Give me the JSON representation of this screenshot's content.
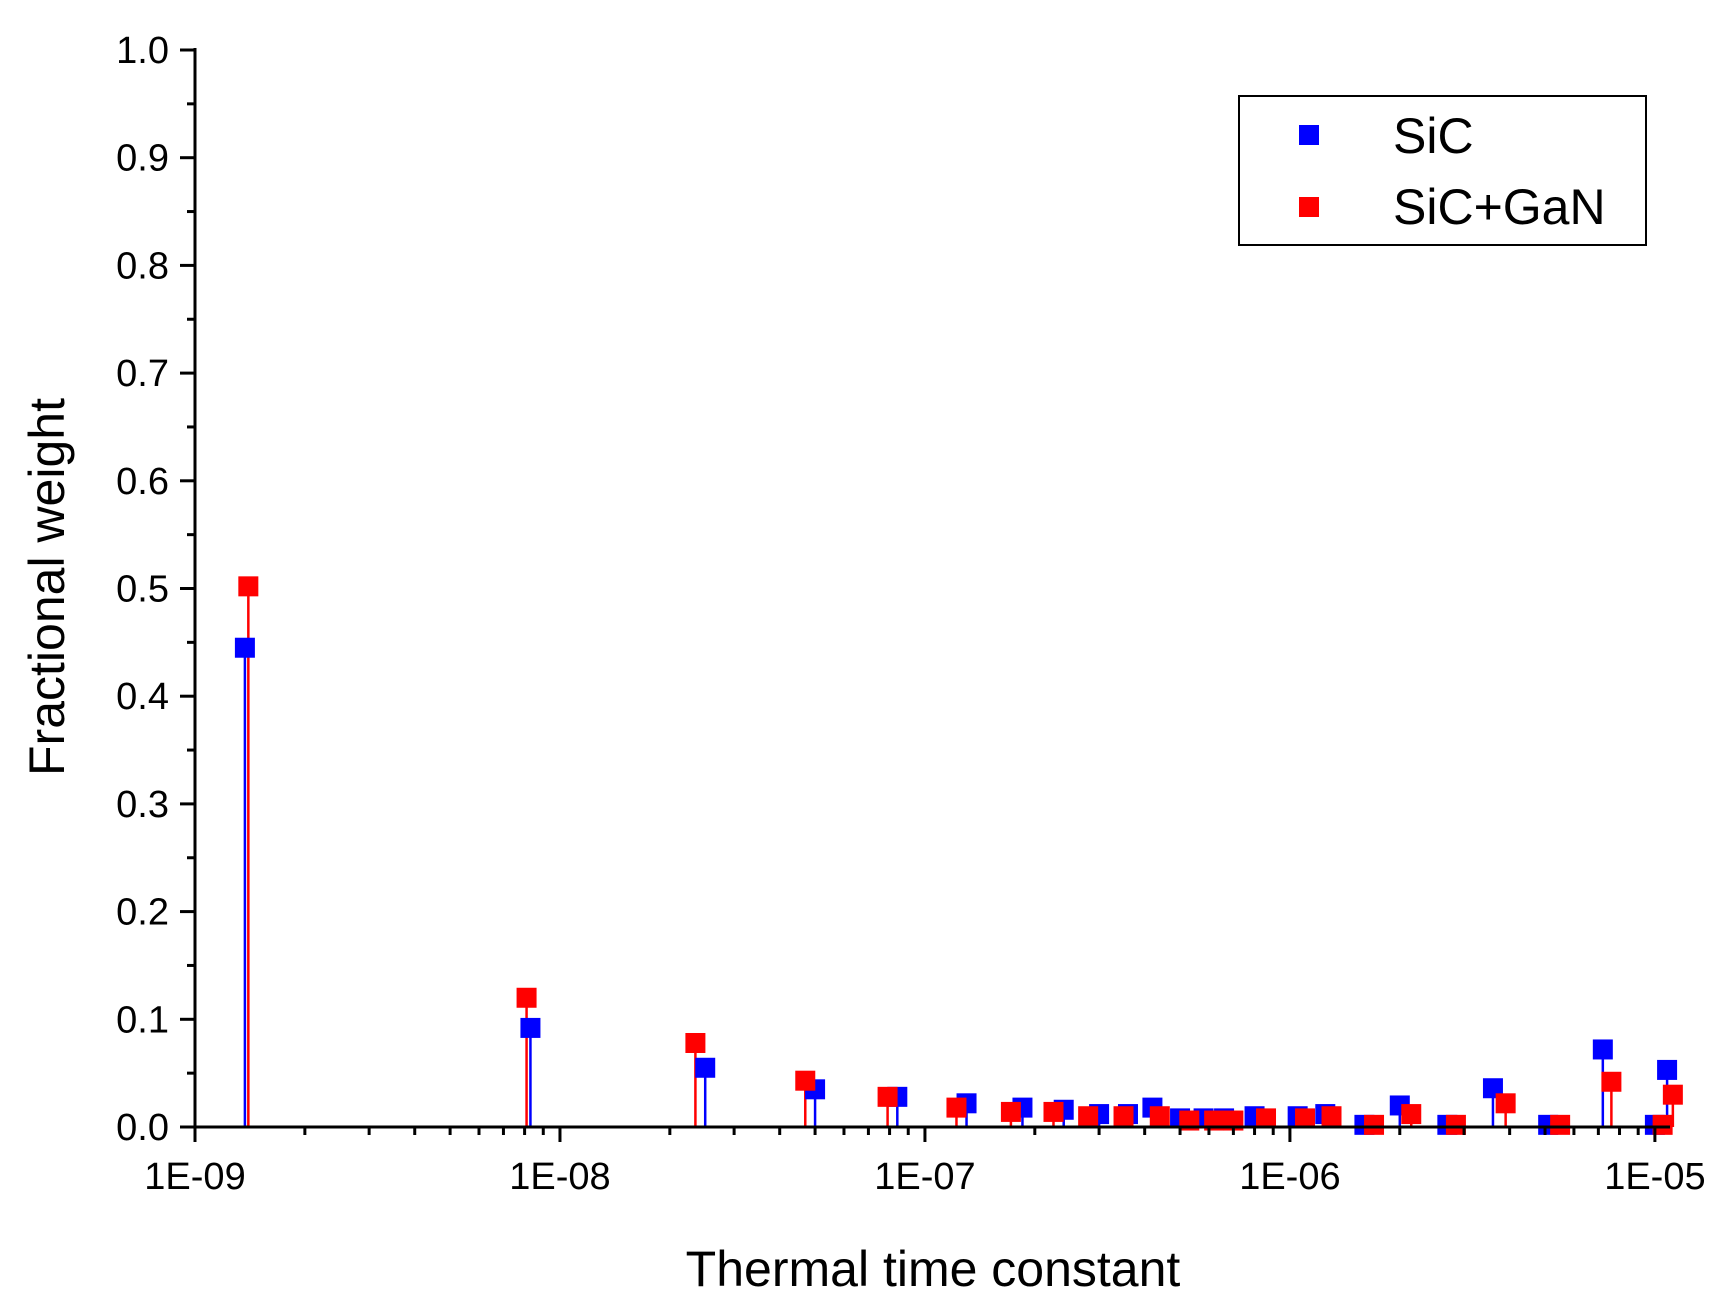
{
  "chart_data": {
    "type": "scatter",
    "style": "stem",
    "title": "",
    "xlabel": "Thermal time constant",
    "ylabel": "Fractional weight",
    "xscale": "log",
    "xlim": [
      1e-09,
      1.1e-05
    ],
    "ylim": [
      0,
      1.0
    ],
    "xticks": [
      1e-09,
      1e-08,
      1e-07,
      1e-06,
      1e-05
    ],
    "xtick_labels": [
      "1E-09",
      "1E-08",
      "1E-07",
      "1E-06",
      "1E-05"
    ],
    "yticks": [
      0.0,
      0.1,
      0.2,
      0.3,
      0.4,
      0.5,
      0.6,
      0.7,
      0.8,
      0.9,
      1.0
    ],
    "ytick_labels": [
      "0.0",
      "0.1",
      "0.2",
      "0.3",
      "0.4",
      "0.5",
      "0.6",
      "0.7",
      "0.8",
      "0.9",
      "1.0"
    ],
    "legend_position": "top-right",
    "series": [
      {
        "name": "SiC",
        "color": "#0000ff",
        "x": [
          1.37e-09,
          8.3e-09,
          2.5e-08,
          5e-08,
          8.4e-08,
          1.3e-07,
          1.85e-07,
          2.4e-07,
          3e-07,
          3.6e-07,
          4.2e-07,
          5e-07,
          5.8e-07,
          6.6e-07,
          8e-07,
          1.05e-06,
          1.25e-06,
          1.6e-06,
          2e-06,
          2.7e-06,
          3.6e-06,
          5.1e-06,
          7.2e-06,
          1e-05,
          1.08e-05
        ],
        "y": [
          0.445,
          0.092,
          0.055,
          0.035,
          0.028,
          0.022,
          0.018,
          0.016,
          0.012,
          0.012,
          0.018,
          0.008,
          0.008,
          0.008,
          0.01,
          0.01,
          0.012,
          0.002,
          0.02,
          0.002,
          0.036,
          0.002,
          0.072,
          0.002,
          0.053
        ]
      },
      {
        "name": "SiC+GaN",
        "color": "#ff0000",
        "x": [
          1.4e-09,
          8.1e-09,
          2.35e-08,
          4.7e-08,
          7.9e-08,
          1.22e-07,
          1.72e-07,
          2.25e-07,
          2.8e-07,
          3.5e-07,
          4.4e-07,
          5.3e-07,
          6.2e-07,
          7e-07,
          8.6e-07,
          1.1e-06,
          1.3e-06,
          1.7e-06,
          2.15e-06,
          2.85e-06,
          3.9e-06,
          5.5e-06,
          7.6e-06,
          1.05e-05,
          1.12e-05
        ],
        "y": [
          0.502,
          0.12,
          0.078,
          0.043,
          0.028,
          0.018,
          0.014,
          0.014,
          0.01,
          0.01,
          0.01,
          0.006,
          0.006,
          0.006,
          0.008,
          0.008,
          0.01,
          0.002,
          0.012,
          0.002,
          0.022,
          0.002,
          0.042,
          0.002,
          0.03
        ]
      }
    ]
  }
}
